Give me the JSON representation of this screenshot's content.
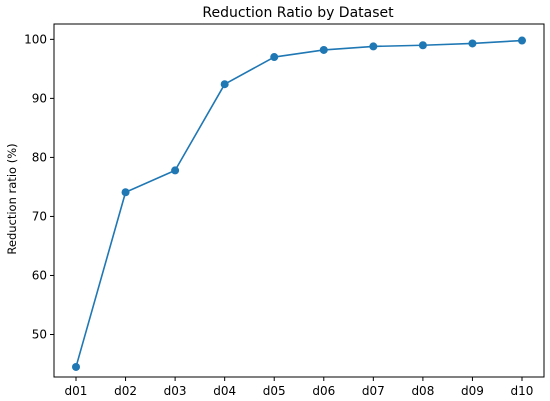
{
  "chart_data": {
    "type": "line",
    "title": "Reduction Ratio by Dataset",
    "xlabel": "",
    "ylabel": "Reduction ratio (%)",
    "categories": [
      "d01",
      "d02",
      "d03",
      "d04",
      "d05",
      "d06",
      "d07",
      "d08",
      "d09",
      "d10"
    ],
    "series": [
      {
        "values": [
          44.5,
          74.1,
          77.8,
          92.4,
          97.0,
          98.2,
          98.8,
          99.0,
          99.3,
          99.8
        ],
        "color": "#1f77b4",
        "marker": "circle"
      }
    ],
    "ylim": [
      42.8,
      102.6
    ],
    "yticks": [
      50,
      60,
      70,
      80,
      90,
      100
    ],
    "grid": false,
    "legend": "none"
  }
}
